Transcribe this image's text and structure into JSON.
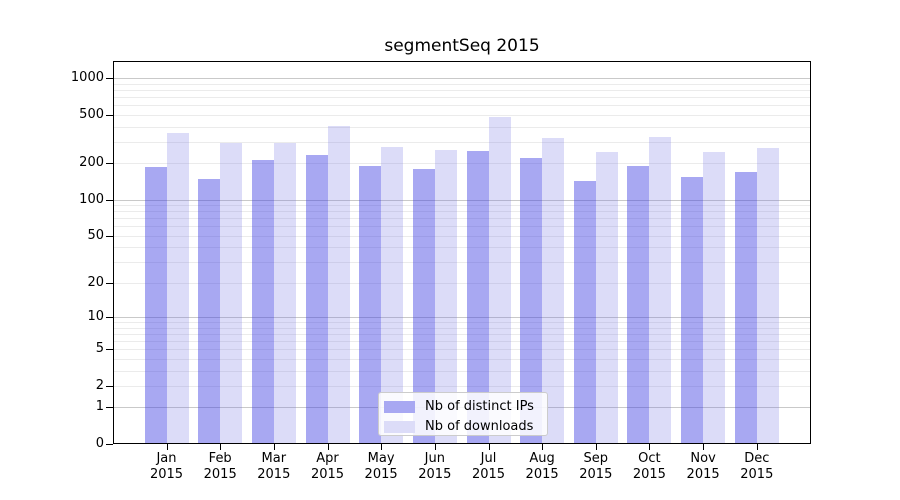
{
  "title": "segmentSeq 2015",
  "chart_data": {
    "type": "bar",
    "yscale": "log1p",
    "title": "segmentSeq 2015",
    "xlabel": "",
    "ylabel": "",
    "year": "2015",
    "categories": [
      "Jan",
      "Feb",
      "Mar",
      "Apr",
      "May",
      "Jun",
      "Jul",
      "Aug",
      "Sep",
      "Oct",
      "Nov",
      "Dec"
    ],
    "series": [
      {
        "name": "Nb of distinct IPs",
        "values": [
          185,
          148,
          212,
          232,
          188,
          178,
          251,
          219,
          142,
          188,
          154,
          169
        ]
      },
      {
        "name": "Nb of downloads",
        "values": [
          353,
          292,
          292,
          403,
          270,
          256,
          478,
          321,
          246,
          326,
          246,
          265
        ]
      }
    ],
    "yticks": [
      0,
      1,
      2,
      5,
      10,
      20,
      50,
      100,
      200,
      500,
      1000
    ],
    "ylim": [
      0,
      1380
    ],
    "grid": "horizontal",
    "legend_position": "lower-center",
    "colors": {
      "bar_ips": "rgba(62,62,226,0.45)",
      "bar_downloads": "rgba(115,115,227,0.25)",
      "swatch_ips": "#a8a8f2",
      "swatch_downloads": "#dcdcf8",
      "grid_minor": "#ebebeb",
      "grid_major": "#c9c9c9",
      "axis": "#000000"
    }
  }
}
